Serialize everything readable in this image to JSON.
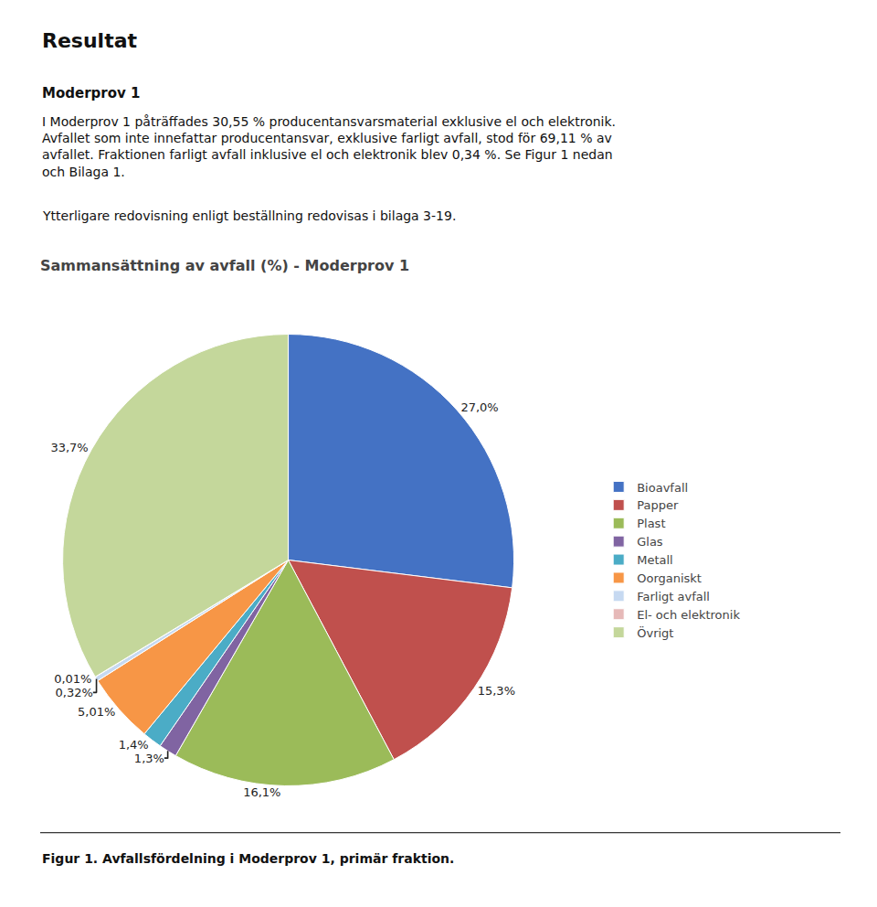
{
  "chart_data": {
    "type": "pie",
    "title": "Sammansättning av avfall (%) - Moderprov 1",
    "annotations": [
      "Resultat",
      "Moderprov 1",
      "I Moderprov 1 påträffades 30,55 % producentansvarsmaterial exklusive el och elektronik.\nAvfallet som inte innefattar producentansvar, exklusive farligt avfall, stod för 69,11 % av\navfallet. Fraktionen farligt avfall inklusive el och elektronik blev 0,34 %. Se Figur 1 nedan\noch Bilaga 1.",
      "Ytterligare redovisning enligt beställning redovisas i bilaga 3-19.",
      "Figur 1. Avfallsfördelning i Moderprov 1, primär fraktion."
    ],
    "categories": [
      "Bioavfall",
      "Papper",
      "Plast",
      "Glas",
      "Metall",
      "Oorganiskt",
      "Farligt avfall",
      "El- och elektronik",
      "Övrigt"
    ],
    "values": [
      27.0,
      15.3,
      16.1,
      1.3,
      1.4,
      5.01,
      0.32,
      0.01,
      33.7
    ],
    "value_labels": [
      "27,0%",
      "15,3%",
      "16,1%",
      "1,3%",
      "1,4%",
      "5,01%",
      "0,32%",
      "0,01%",
      "33,7%"
    ],
    "colors": [
      "#4472C4",
      "#C0504D",
      "#9BBB59",
      "#8064A2",
      "#4BACC6",
      "#F79646",
      "#C6D9F1",
      "#E6B9B8",
      "#C4D79B"
    ],
    "data_labels": true,
    "legend": "right"
  }
}
